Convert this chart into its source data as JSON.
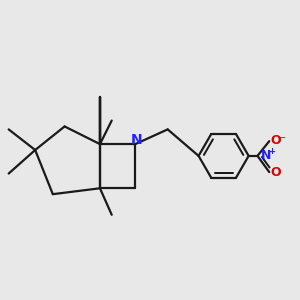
{
  "background_color": "#e8e8e8",
  "bond_color": "#1a1a1a",
  "N_color": "#2020ff",
  "O_color": "#dd0000",
  "line_width": 1.6,
  "font_size_label": 9,
  "figsize": [
    3.0,
    3.0
  ],
  "dpi": 100,
  "xlim": [
    0.0,
    1.0
  ],
  "ylim": [
    0.15,
    0.95
  ]
}
